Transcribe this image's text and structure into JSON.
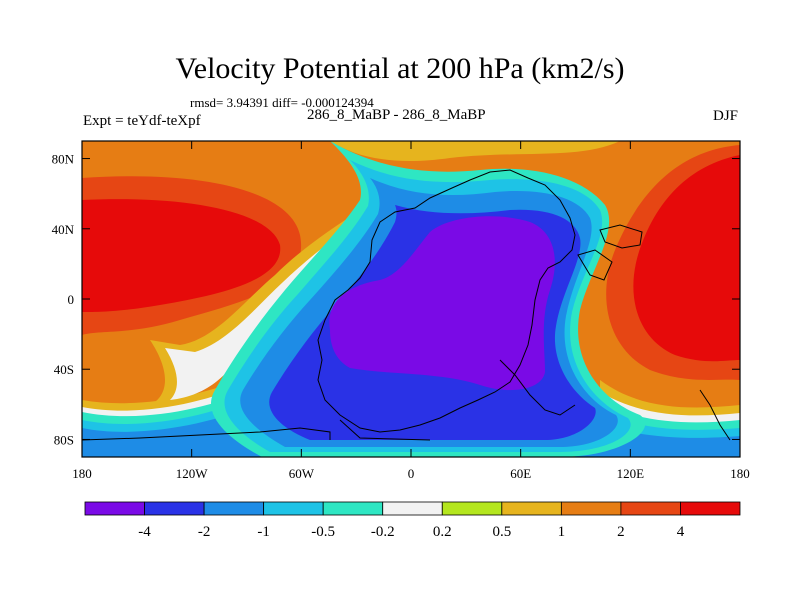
{
  "chart_data": {
    "type": "heatmap",
    "title": "Velocity Potential at 200 hPa (km2/s)",
    "stats_line": "rmsd= 3.94391 diff= -0.000124394",
    "left_label": "Expt = teYdf-teXpf",
    "center_label": "286_8_MaBP - 286_8_MaBP",
    "right_label": "DJF",
    "xlim": [
      -180,
      180
    ],
    "ylim": [
      -90,
      90
    ],
    "x_ticks": [
      {
        "value": -180,
        "label": "180"
      },
      {
        "value": -120,
        "label": "120W"
      },
      {
        "value": -60,
        "label": "60W"
      },
      {
        "value": 0,
        "label": "0"
      },
      {
        "value": 60,
        "label": "60E"
      },
      {
        "value": 120,
        "label": "120E"
      },
      {
        "value": 180,
        "label": "180"
      }
    ],
    "y_ticks": [
      {
        "value": 80,
        "label": "80N"
      },
      {
        "value": 40,
        "label": "40N"
      },
      {
        "value": 0,
        "label": "0"
      },
      {
        "value": -40,
        "label": "40S"
      },
      {
        "value": -80,
        "label": "80S"
      }
    ],
    "contour_levels": [
      -4,
      -2,
      -1,
      -0.5,
      -0.2,
      0.2,
      0.5,
      1,
      2,
      4
    ],
    "colorbar_labels": [
      "-4",
      "-2",
      "-1",
      "-0.5",
      "-0.2",
      "0.2",
      "0.5",
      "1",
      "2",
      "4"
    ],
    "colors": [
      "#7a0ae6",
      "#2a32e6",
      "#1e8ce6",
      "#1ec3e6",
      "#2ee6c3",
      "#f2f2f2",
      "#b4e61e",
      "#e6b41e",
      "#e67d14",
      "#e64614",
      "#e60a0a"
    ],
    "field_centers": [
      {
        "lon": 30,
        "lat": -5,
        "value": -4.8
      },
      {
        "lon": -150,
        "lat": 25,
        "value": 4.6
      },
      {
        "lon": 150,
        "lat": 15,
        "value": 4.4
      }
    ]
  }
}
